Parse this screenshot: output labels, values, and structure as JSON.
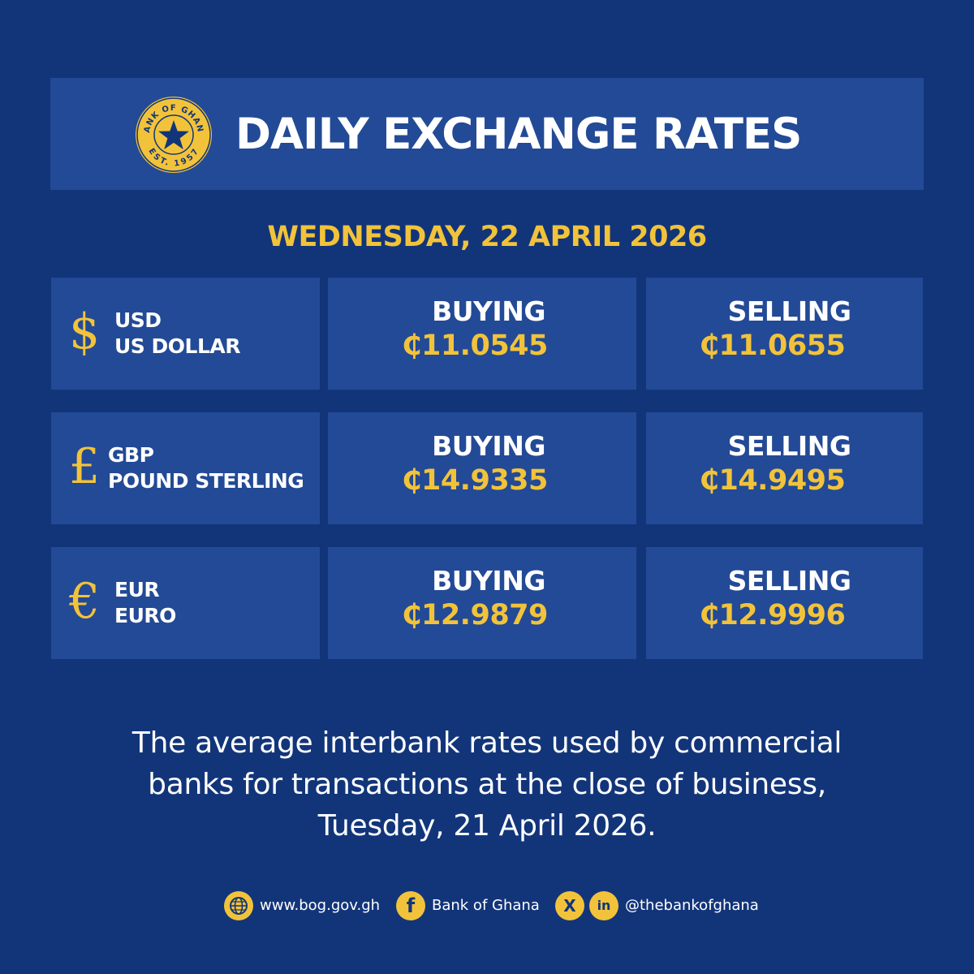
{
  "header": {
    "title": "DAILY EXCHANGE RATES",
    "seal": {
      "top_text": "BANK OF GHANA",
      "bottom_text": "EST. 1957"
    }
  },
  "date": "WEDNESDAY, 22 APRIL 2026",
  "rates": [
    {
      "symbol": "$",
      "code": "USD",
      "name": "US DOLLAR",
      "buying_label": "BUYING",
      "buying": "₵11.0545",
      "selling_label": "SELLING",
      "selling": "₵11.0655"
    },
    {
      "symbol": "£",
      "code": "GBP",
      "name": "POUND STERLING",
      "buying_label": "BUYING",
      "buying": "₵14.9335",
      "selling_label": "SELLING",
      "selling": "₵14.9495"
    },
    {
      "symbol": "€",
      "code": "EUR",
      "name": "EURO",
      "buying_label": "BUYING",
      "buying": "₵12.9879",
      "selling_label": "SELLING",
      "selling": "₵12.9996"
    }
  ],
  "note": {
    "line1": "The average interbank rates used by commercial",
    "line2": "banks for transactions at the close of business,",
    "line3": "Tuesday, 21 April 2026."
  },
  "footer": {
    "website": "www.bog.gov.gh",
    "facebook": "Bank of Ghana",
    "social_handle": "@thebankofghana",
    "icons": [
      "globe-icon",
      "facebook-icon",
      "x-icon",
      "linkedin-icon"
    ]
  },
  "colors": {
    "background": "#12357a",
    "panel": "#234a96",
    "accent": "#f2c33a",
    "text": "#ffffff"
  }
}
